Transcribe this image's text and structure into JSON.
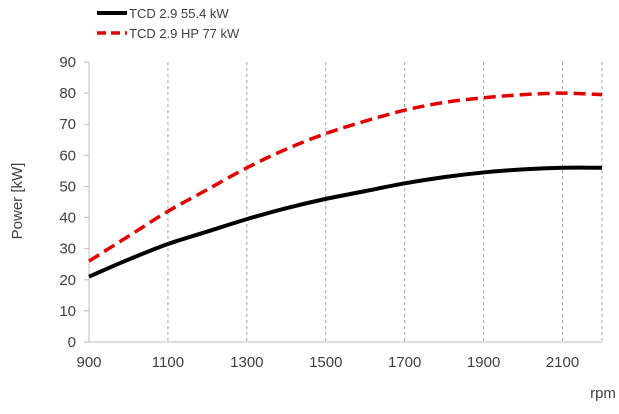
{
  "chart_data": {
    "type": "line",
    "xlabel": "rpm",
    "ylabel": "Power [kW]",
    "xlim": [
      900,
      2200
    ],
    "ylim": [
      0,
      90
    ],
    "x_ticks": [
      900,
      1100,
      1300,
      1500,
      1700,
      1900,
      2100
    ],
    "y_ticks": [
      0,
      10,
      20,
      30,
      40,
      50,
      60,
      70,
      80,
      90
    ],
    "grid": "vertical dashed",
    "legend_position": "top-left",
    "series": [
      {
        "name": "TCD 2.9 55.4 kW",
        "color": "#000000",
        "style": "solid",
        "x": [
          900,
          1000,
          1100,
          1200,
          1300,
          1400,
          1500,
          1600,
          1700,
          1800,
          1900,
          2000,
          2100,
          2200
        ],
        "y": [
          21,
          26.5,
          31.5,
          35.5,
          39.5,
          43,
          46,
          48.5,
          51,
          53,
          54.5,
          55.5,
          56,
          56
        ]
      },
      {
        "name": "TCD 2.9 HP 77 kW",
        "color": "#e00000",
        "style": "dashed",
        "x": [
          900,
          1000,
          1100,
          1200,
          1300,
          1400,
          1500,
          1600,
          1700,
          1800,
          1900,
          2000,
          2100,
          2200
        ],
        "y": [
          26,
          34,
          42,
          49,
          56,
          62,
          67,
          71,
          74.5,
          77,
          78.5,
          79.5,
          80,
          79.5
        ]
      }
    ]
  }
}
